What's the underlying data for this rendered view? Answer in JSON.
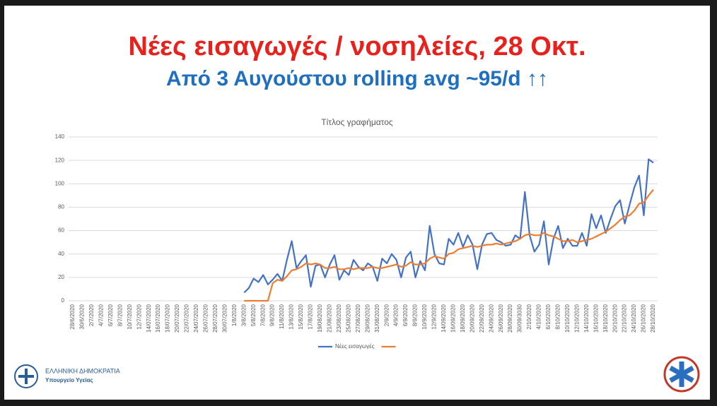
{
  "slide": {
    "title": "Νέες εισαγωγές / νοσηλείες, 28 Οκτ.",
    "subtitle": "Από 3 Αυγούστου rolling avg ~95/d ↑↑",
    "footer_org": "ΕΛΛΗΝΙΚΗ ΔΗΜΟΚΡΑΤΙΑ",
    "footer_ministry": "Υπουργείο Υγείας"
  },
  "chart_data": {
    "type": "line",
    "title": "Τίτλος γραφήματος",
    "categories": [
      "28/6/2020",
      null,
      "30/6/2020",
      null,
      "2/7/2020",
      null,
      "4/7/2020",
      null,
      "6/7/2020",
      null,
      "8/7/2020",
      null,
      "10/7/2020",
      null,
      "12/7/2020",
      null,
      "14/07/2020",
      null,
      "16/07/2020",
      null,
      "18/07/2020",
      null,
      "20/07/2020",
      null,
      "22/07/2020",
      null,
      "24/07/2020",
      null,
      "26/07/2020",
      null,
      "28/07/2020",
      null,
      "30/07/2020",
      null,
      "1/8/2020",
      null,
      "3/8/2020",
      null,
      "5/8/2020",
      null,
      "7/8/2020",
      null,
      "9/8/2020",
      null,
      "11/8/2020",
      null,
      "13/8/2020",
      null,
      "15/8/2020",
      null,
      "17/8/2020",
      null,
      "19/08/2020",
      null,
      "21/08/2020",
      null,
      "23/08/2020",
      null,
      "25/08/2020",
      null,
      "27/08/2020",
      null,
      "29/08/2020",
      null,
      "31/08/2020",
      null,
      "2/9/2020",
      null,
      "4/9/2020",
      null,
      "6/9/2020",
      null,
      "8/9/2020",
      null,
      "10/9/2020",
      null,
      "12/9/2020",
      null,
      "14/09/2020",
      null,
      "16/09/2020",
      null,
      "18/09/2020",
      null,
      "20/09/2020",
      null,
      "22/09/2020",
      null,
      "24/09/2020",
      null,
      "26/09/2020",
      null,
      "28/09/2020",
      null,
      "30/09/3030",
      null,
      "2/10/2020",
      null,
      "4/10/2020",
      null,
      "6/10/2020",
      null,
      "8/10/2020",
      null,
      "10/10/2020",
      null,
      "12/10/2020",
      null,
      "14/10/2020",
      null,
      "16/10/2020",
      null,
      "18/10/2020",
      null,
      "20/10/2020",
      null,
      "22/10/2020",
      null,
      "24/10/2020",
      null,
      "26/10/2020",
      null,
      "28/10/2020"
    ],
    "series": [
      {
        "name": "Νέες εισαγωγές",
        "color": "#4472c4",
        "values": [
          null,
          null,
          null,
          null,
          null,
          null,
          null,
          null,
          null,
          null,
          null,
          null,
          null,
          null,
          null,
          null,
          null,
          null,
          null,
          null,
          null,
          null,
          null,
          null,
          null,
          null,
          null,
          null,
          null,
          null,
          null,
          null,
          null,
          null,
          null,
          null,
          7,
          11,
          19,
          16,
          22,
          14,
          18,
          23,
          17,
          35,
          51,
          28,
          34,
          39,
          12,
          30,
          31,
          20,
          31,
          39,
          18,
          26,
          22,
          35,
          29,
          26,
          32,
          29,
          17,
          36,
          32,
          40,
          35,
          20,
          37,
          42,
          20,
          34,
          26,
          64,
          40,
          32,
          31,
          53,
          48,
          58,
          46,
          56,
          48,
          27,
          48,
          57,
          58,
          52,
          50,
          47,
          48,
          56,
          53,
          93,
          56,
          42,
          48,
          68,
          31,
          53,
          64,
          45,
          53,
          47,
          47,
          58,
          47,
          74,
          62,
          73,
          58,
          70,
          81,
          86,
          66,
          82,
          97,
          107,
          73,
          121,
          118
        ]
      },
      {
        "color": "#ed7d31",
        "values": [
          null,
          null,
          null,
          null,
          null,
          null,
          null,
          null,
          null,
          null,
          null,
          null,
          null,
          null,
          null,
          null,
          null,
          null,
          null,
          null,
          null,
          null,
          null,
          null,
          null,
          null,
          null,
          null,
          null,
          null,
          null,
          null,
          null,
          null,
          null,
          null,
          0,
          0,
          0,
          0,
          0,
          0,
          15,
          18,
          17,
          21,
          26,
          27,
          29,
          32,
          31,
          32,
          31,
          28,
          28,
          29,
          27,
          27,
          28,
          27,
          28,
          28,
          28,
          29,
          28,
          28,
          29,
          30,
          31,
          29,
          30,
          33,
          31,
          31,
          32,
          36,
          38,
          37,
          36,
          40,
          41,
          44,
          45,
          46,
          47,
          46,
          47,
          48,
          48,
          49,
          48,
          49,
          50,
          51,
          53,
          56,
          57,
          56,
          56,
          58,
          56,
          55,
          53,
          51,
          51,
          52,
          50,
          51,
          52,
          53,
          55,
          57,
          59,
          62,
          65,
          69,
          72,
          73,
          77,
          83,
          84,
          90,
          95
        ]
      }
    ],
    "ylim": [
      0,
      140
    ],
    "yticks": [
      0,
      20,
      40,
      60,
      80,
      100,
      120,
      140
    ],
    "grid": true,
    "legend": "bottom"
  }
}
